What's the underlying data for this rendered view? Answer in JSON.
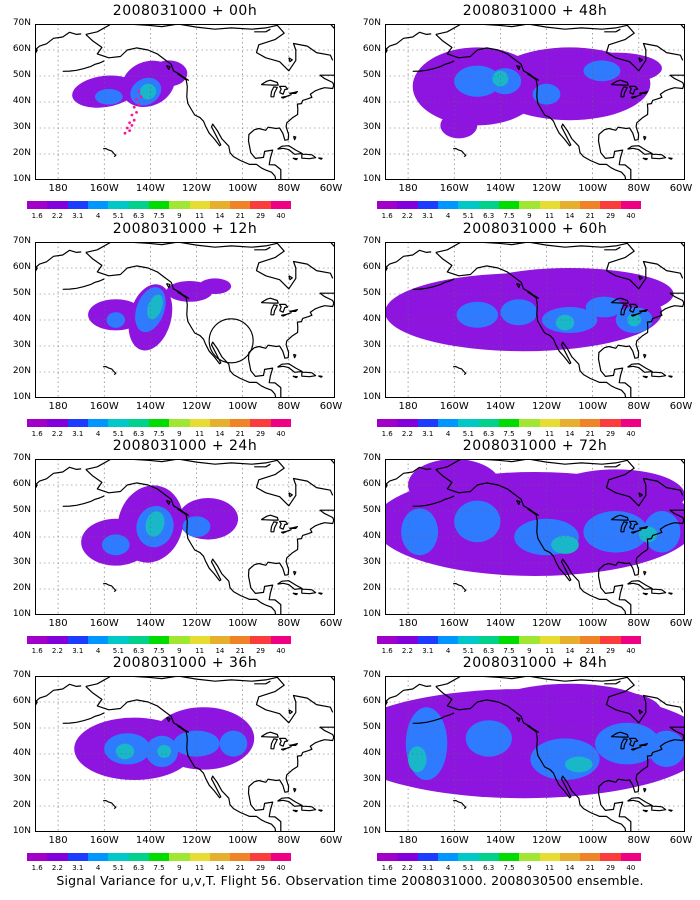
{
  "panels": [
    {
      "title": "2008031000 + 00h",
      "stage": 0
    },
    {
      "title": "2008031000 + 48h",
      "stage": 4
    },
    {
      "title": "2008031000 + 12h",
      "stage": 1
    },
    {
      "title": "2008031000 + 60h",
      "stage": 5
    },
    {
      "title": "2008031000 + 24h",
      "stage": 2
    },
    {
      "title": "2008031000 + 72h",
      "stage": 6
    },
    {
      "title": "2008031000 + 36h",
      "stage": 3
    },
    {
      "title": "2008031000 + 84h",
      "stage": 7
    }
  ],
  "latitude_labels": [
    "70N",
    "60N",
    "50N",
    "40N",
    "30N",
    "20N",
    "10N"
  ],
  "longitude_labels": [
    "180",
    "160W",
    "140W",
    "120W",
    "100W",
    "80W",
    "60W"
  ],
  "colorbar": {
    "labels": [
      "1.6",
      "2.2",
      "3.1",
      "4",
      "5.1",
      "6.3",
      "7.5",
      "9",
      "11",
      "14",
      "21",
      "29",
      "40"
    ],
    "colors": [
      "#a000c8",
      "#8200dc",
      "#1e3cff",
      "#0096ff",
      "#00c8c8",
      "#00d28c",
      "#00dc00",
      "#a0e632",
      "#e6dc32",
      "#e6af2d",
      "#f08228",
      "#fa3c3c",
      "#f00082"
    ]
  },
  "caption": "Signal Variance for u,v,T. Flight 56. Observation time 2008031000. 2008030500 ensemble."
}
